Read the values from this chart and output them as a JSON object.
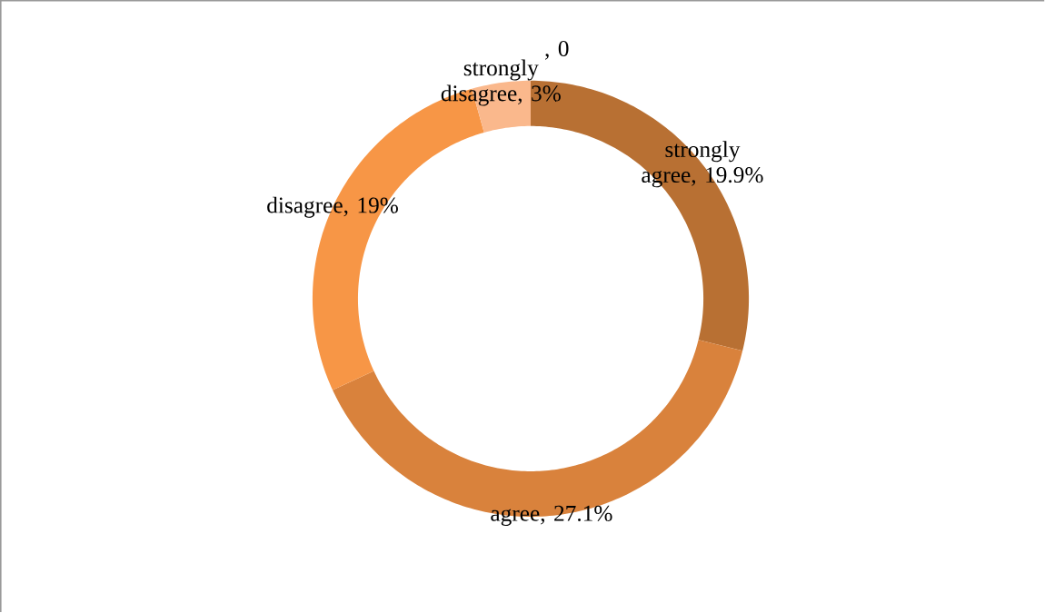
{
  "chart_data": {
    "type": "donut",
    "categories": [
      "strongly agree",
      "agree",
      "disagree",
      "strongly disagree",
      null
    ],
    "values": [
      19.9,
      27.1,
      19,
      3,
      0
    ],
    "value_labels": [
      ", 19.9%",
      ", 27.1%",
      ", 19%",
      ", 3%",
      ", 0"
    ],
    "colors": [
      "#b87033",
      "#d9823c",
      "#f79646",
      "#fab88c",
      "#fcd5b5"
    ]
  }
}
